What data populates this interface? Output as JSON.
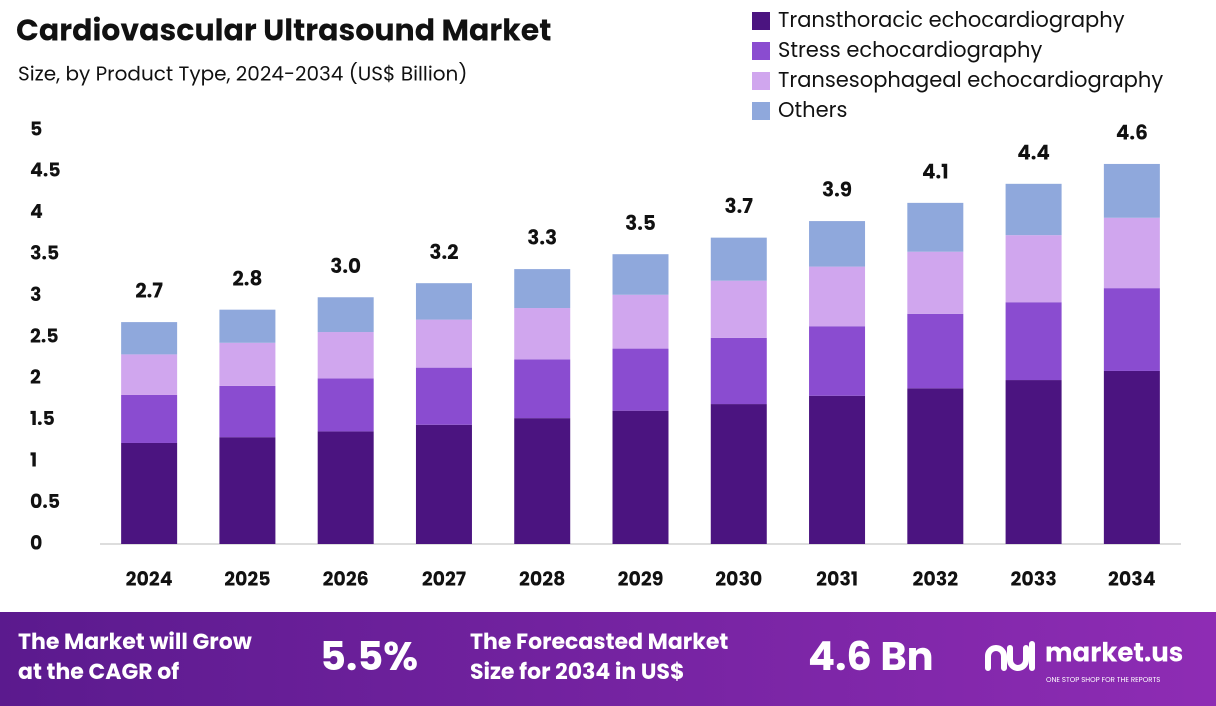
{
  "chart_data": {
    "type": "stacked-bar",
    "title": "Cardiovascular Ultrasound Market",
    "subtitle": "Size, by Product Type, 2024-2034 (US$ Billion)",
    "categories": [
      "2024",
      "2025",
      "2026",
      "2027",
      "2028",
      "2029",
      "2030",
      "2031",
      "2032",
      "2033",
      "2034"
    ],
    "series": [
      {
        "name": "Transthoracic echocardiography",
        "color": "#4b1480",
        "values": [
          1.22,
          1.29,
          1.36,
          1.44,
          1.52,
          1.61,
          1.69,
          1.79,
          1.88,
          1.98,
          2.09
        ]
      },
      {
        "name": "Stress echocardiography",
        "color": "#8a4cd0",
        "values": [
          0.58,
          0.62,
          0.64,
          0.69,
          0.71,
          0.75,
          0.8,
          0.84,
          0.9,
          0.94,
          1.0
        ]
      },
      {
        "name": "Transesophageal echocardiography",
        "color": "#d0a6ee",
        "values": [
          0.49,
          0.52,
          0.56,
          0.58,
          0.62,
          0.65,
          0.69,
          0.72,
          0.75,
          0.81,
          0.85
        ]
      },
      {
        "name": "Others",
        "color": "#8fa8dc",
        "values": [
          0.39,
          0.4,
          0.42,
          0.44,
          0.47,
          0.49,
          0.52,
          0.55,
          0.59,
          0.62,
          0.65
        ]
      }
    ],
    "total_labels": [
      "2.7",
      "2.8",
      "3.0",
      "3.2",
      "3.3",
      "3.5",
      "3.7",
      "3.9",
      "4.1",
      "4.4",
      "4.6"
    ],
    "ylim": [
      0,
      5
    ],
    "yticks": [
      0,
      0.5,
      1,
      1.5,
      2,
      2.5,
      3,
      3.5,
      4,
      4.5,
      5
    ],
    "grid": false,
    "legend": "top-right"
  },
  "footer": {
    "cagr_text": [
      "The Market will Grow",
      "at the CAGR of"
    ],
    "cagr_value": "5.5%",
    "forecast_text": [
      "The Forecasted Market",
      "Size for 2034 in US$"
    ],
    "forecast_value": "4.6 Bn",
    "brand": "market.us",
    "tagline": "ONE STOP SHOP FOR THE REPORTS"
  }
}
